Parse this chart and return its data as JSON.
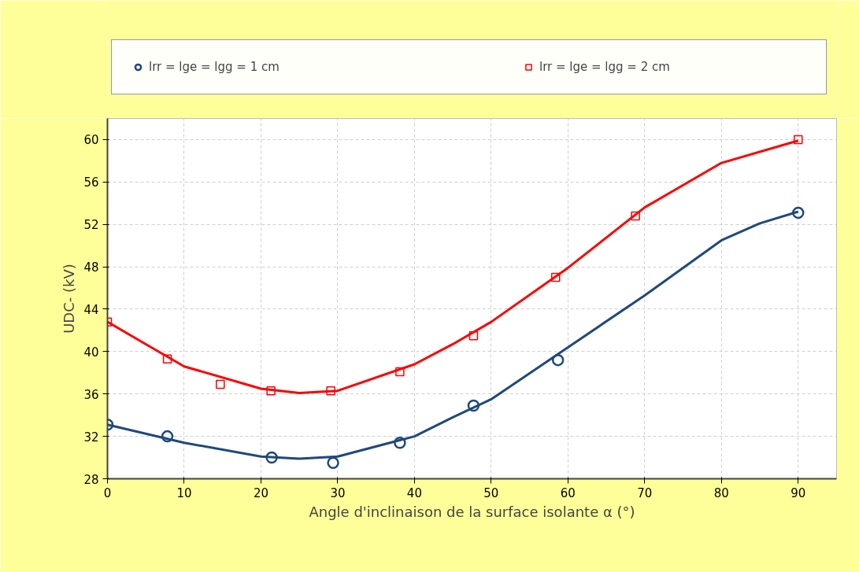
{
  "chart_data": {
    "type": "scatter",
    "xlabel": "Angle d'inclinaison de la surface isolante α (°)",
    "ylabel": "UDC- (kV)",
    "xlim": [
      0,
      95
    ],
    "ylim": [
      28,
      62
    ],
    "xticks": [
      0,
      10,
      20,
      30,
      40,
      50,
      60,
      70,
      80,
      90
    ],
    "yticks": [
      28,
      32,
      36,
      40,
      44,
      48,
      52,
      56,
      60
    ],
    "grid": true,
    "legend": "top",
    "series": [
      {
        "name": "lrr = lge = lgg = 1 cm",
        "marker": "circle",
        "color": "#1f497d",
        "x": [
          0,
          7.8,
          21.4,
          29.4,
          38.1,
          47.7,
          58.7,
          90
        ],
        "values": [
          33.1,
          32.0,
          30.0,
          29.5,
          31.4,
          34.9,
          39.2,
          53.1
        ]
      },
      {
        "name": "lrr = lge = lgg = 2 cm",
        "marker": "square",
        "color": "#ff0000",
        "x": [
          0,
          7.8,
          14.7,
          21.3,
          29.1,
          38.1,
          47.7,
          58.4,
          68.8,
          90
        ],
        "values": [
          42.8,
          39.3,
          36.9,
          36.3,
          36.3,
          38.1,
          41.5,
          47.0,
          52.8,
          60.0
        ]
      },
      {
        "type": "line",
        "color": "#1f497d",
        "x": [
          0,
          10,
          20,
          25,
          30,
          40,
          45,
          50,
          60,
          70,
          80,
          85,
          90
        ],
        "values": [
          33.1,
          31.4,
          30.1,
          29.9,
          30.1,
          32.0,
          33.8,
          35.5,
          40.4,
          45.3,
          50.5,
          52.1,
          53.2
        ]
      },
      {
        "type": "line",
        "color": "#ff0000",
        "x": [
          0,
          5,
          10,
          20,
          25,
          30,
          40,
          45,
          50,
          60,
          70,
          80,
          90
        ],
        "values": [
          42.8,
          40.7,
          38.6,
          36.5,
          36.1,
          36.3,
          38.8,
          40.7,
          42.8,
          47.9,
          53.6,
          57.8,
          59.9
        ]
      }
    ]
  }
}
